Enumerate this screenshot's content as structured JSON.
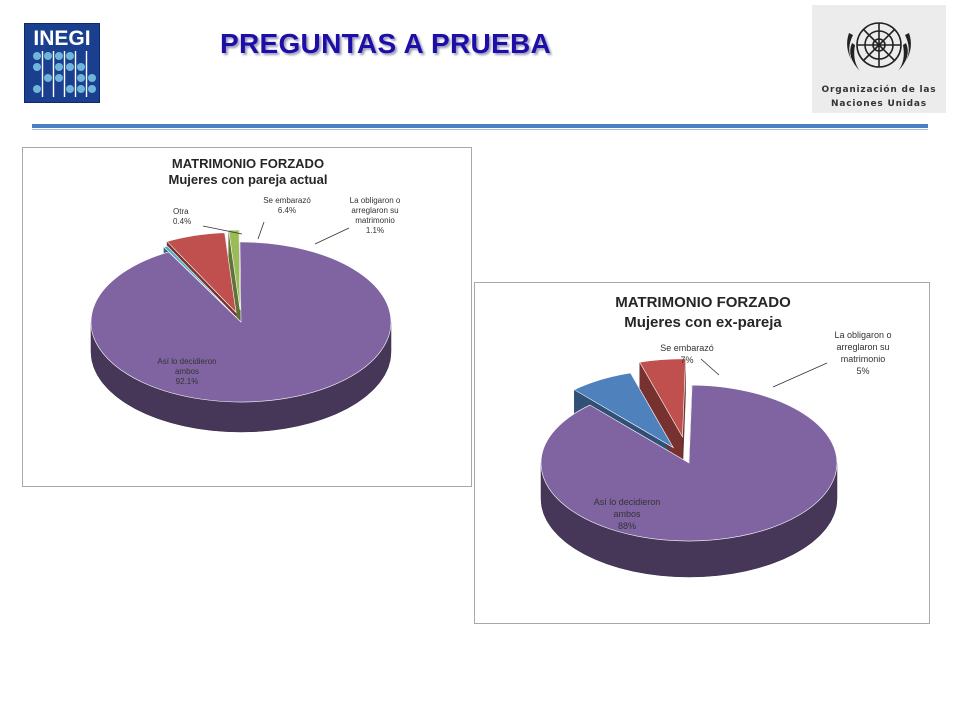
{
  "header": {
    "title": "PREGUNTAS A PRUEBA",
    "logo_left_text": "INEGI",
    "logo_right_line1": "Organización de las",
    "logo_right_line2": "Naciones Unidas"
  },
  "chart_data": [
    {
      "type": "pie",
      "title": "MATRIMONIO FORZADO",
      "subtitle": "Mujeres con pareja actual",
      "slices": [
        {
          "label": "Así lo decidieron ambos",
          "value": 92.1,
          "value_label": "92.1%",
          "color": "#8064a2"
        },
        {
          "label": "Otra",
          "value": 0.4,
          "value_label": "0.4%",
          "color": "#4bacc6"
        },
        {
          "label": "Se embarazó",
          "value": 6.4,
          "value_label": "6.4%",
          "color": "#c0504d"
        },
        {
          "label": "La obligaron o arreglaron su matrimonio",
          "value": 1.1,
          "value_label": "1.1%",
          "color": "#9bbb59"
        }
      ]
    },
    {
      "type": "pie",
      "title": "MATRIMONIO FORZADO",
      "subtitle": "Mujeres con ex-pareja",
      "slices": [
        {
          "label": "Así lo decidieron ambos",
          "value": 88,
          "value_label": "88%",
          "color": "#8064a2"
        },
        {
          "label": "Se embarazó",
          "value": 7,
          "value_label": "7%",
          "color": "#4f81bd"
        },
        {
          "label": "La obligaron o arreglaron su matrimonio",
          "value": 5,
          "value_label": "5%",
          "color": "#c0504d"
        }
      ]
    }
  ]
}
